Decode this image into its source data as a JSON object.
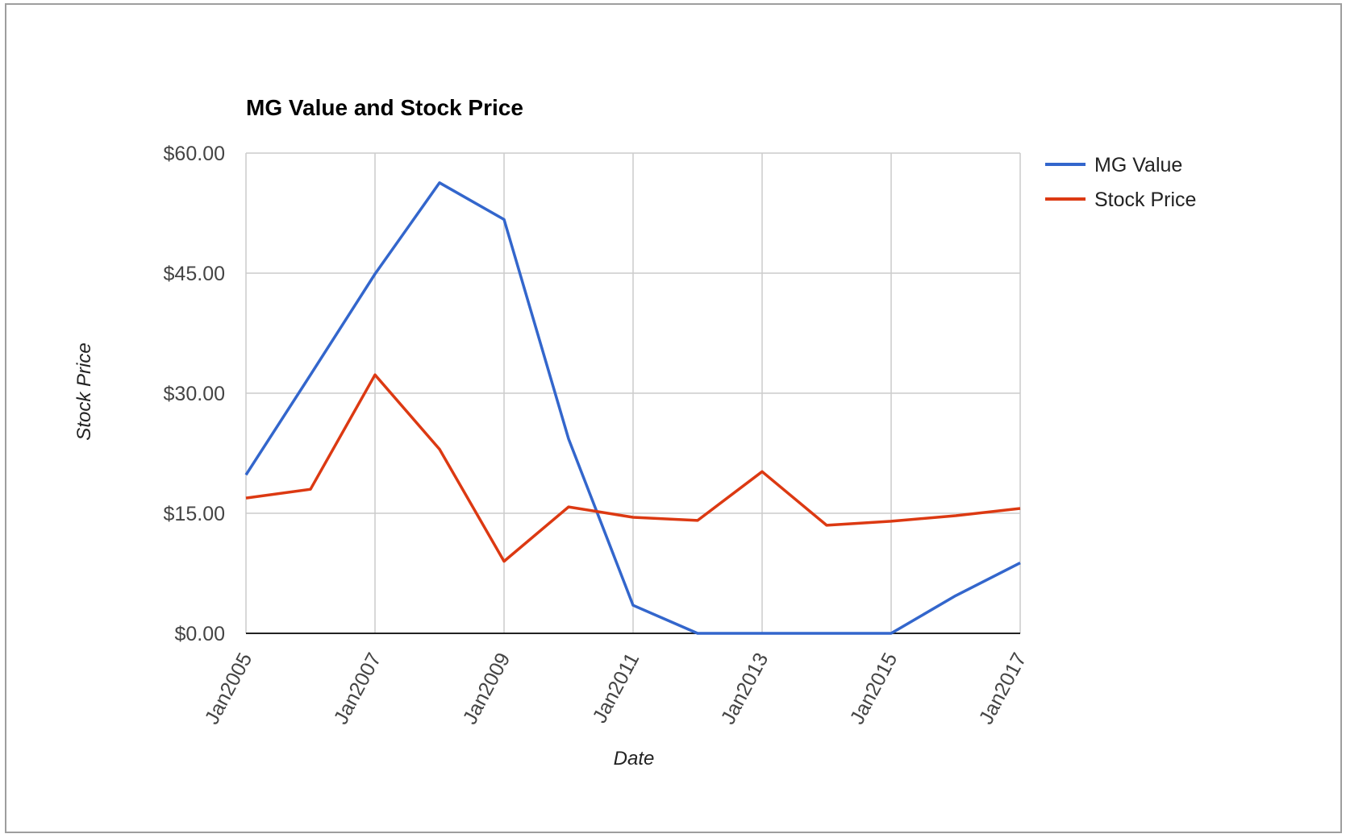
{
  "chart_data": {
    "type": "line",
    "title": "MG Value and Stock Price",
    "xlabel": "Date",
    "ylabel": "Stock Price",
    "x_tick_labels": [
      "Jan2005",
      "Jan2007",
      "Jan2009",
      "Jan2011",
      "Jan2013",
      "Jan2015",
      "Jan2017"
    ],
    "x": [
      "Jan2005",
      "Jan2006",
      "Jan2007",
      "Jan2008",
      "Jan2009",
      "Jan2010",
      "Jan2011",
      "Jan2012",
      "Jan2013",
      "Jan2014",
      "Jan2015",
      "Jan2016",
      "Jan2017"
    ],
    "xlim": [
      "Jan2005",
      "Jan2017"
    ],
    "ylim": [
      0,
      60
    ],
    "y_ticks": [
      0,
      15,
      30,
      45,
      60
    ],
    "y_tick_labels": [
      "$0.00",
      "$15.00",
      "$30.00",
      "$45.00",
      "$60.00"
    ],
    "grid": true,
    "legend_position": "right",
    "series": [
      {
        "name": "MG Value",
        "color": "#3366cc",
        "values": [
          19.8,
          32.3,
          44.9,
          56.3,
          51.7,
          24.3,
          3.5,
          0,
          0,
          0,
          0,
          4.7,
          8.8
        ]
      },
      {
        "name": "Stock Price",
        "color": "#dc3912",
        "values": [
          16.9,
          18.0,
          32.3,
          23.0,
          9.0,
          15.8,
          14.5,
          14.1,
          20.2,
          13.5,
          14.0,
          14.7,
          15.6
        ]
      }
    ]
  }
}
